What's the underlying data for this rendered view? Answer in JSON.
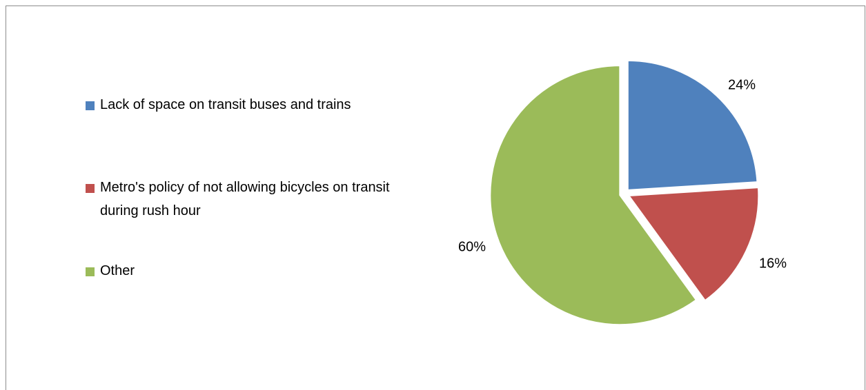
{
  "chart_data": {
    "type": "pie",
    "title": "",
    "categories": [
      "Lack of space on transit buses and trains",
      "Metro's policy of not allowing bicycles on transit during rush hour",
      "Other"
    ],
    "values": [
      24,
      16,
      60
    ],
    "data_labels": [
      "24%",
      "16%",
      "60%"
    ],
    "colors": [
      "#4f81bd",
      "#c0504d",
      "#9bbb59"
    ],
    "exploded": true,
    "legend_position": "left"
  }
}
